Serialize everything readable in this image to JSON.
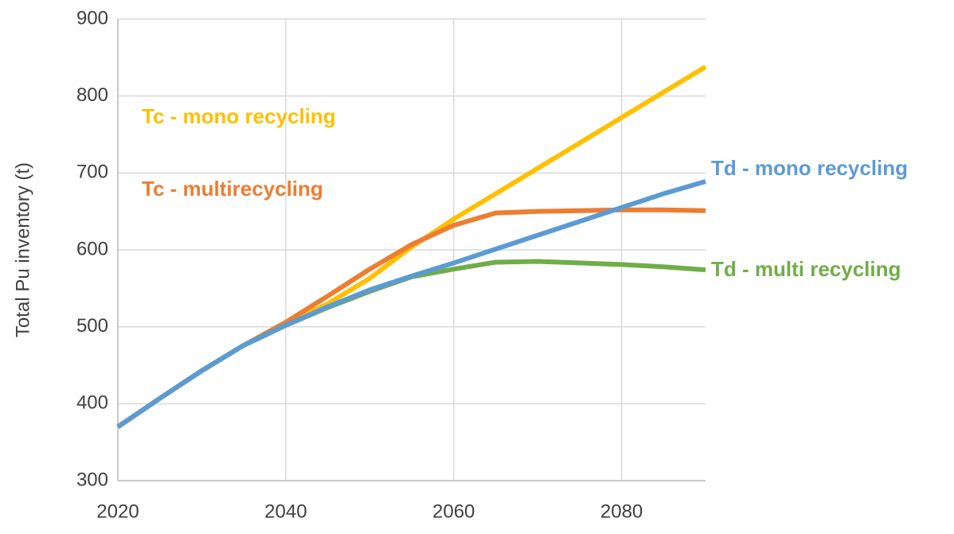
{
  "chart_data": {
    "type": "line",
    "y_label": "Total Pu inventory (t)",
    "x": [
      2020,
      2025,
      2030,
      2035,
      2040,
      2045,
      2050,
      2055,
      2060,
      2065,
      2070,
      2075,
      2080,
      2085,
      2090
    ],
    "series": [
      {
        "name": "Tc - mono recycling",
        "color": "#ffc000",
        "values": [
          370,
          407,
          443,
          476,
          504,
          530,
          563,
          604,
          640,
          673,
          706,
          739,
          772,
          805,
          838
        ]
      },
      {
        "name": "Tc - multirecycling",
        "color": "#ed7d31",
        "values": [
          370,
          407,
          443,
          476,
          506,
          540,
          575,
          607,
          632,
          648,
          650,
          651,
          652,
          652,
          651
        ]
      },
      {
        "name": "Td - multi recycling",
        "color": "#70ad47",
        "values": [
          370,
          407,
          443,
          476,
          502,
          525,
          546,
          565,
          575,
          584,
          585,
          583,
          581,
          578,
          574
        ]
      },
      {
        "name": "Td - mono recycling",
        "color": "#5b9bd5",
        "values": [
          370,
          407,
          443,
          476,
          502,
          526,
          548,
          566,
          583,
          601,
          619,
          637,
          655,
          673,
          689
        ]
      }
    ],
    "xlim": [
      2020,
      2090
    ],
    "xticks": [
      2020,
      2040,
      2060,
      2080
    ],
    "ylim": [
      300,
      900
    ],
    "yticks": [
      300,
      400,
      500,
      600,
      700,
      800,
      900
    ],
    "grid": true
  }
}
